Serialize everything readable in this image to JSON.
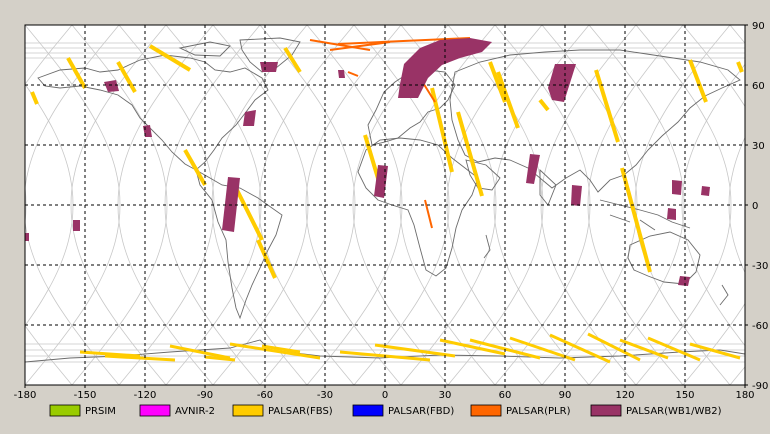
{
  "map": {
    "lon_ticks": [
      "-180",
      "-150",
      "-120",
      "-90",
      "-60",
      "-30",
      "0",
      "30",
      "60",
      "90",
      "120",
      "150",
      "180"
    ],
    "lat_ticks": [
      "90",
      "60",
      "30",
      "0",
      "-30",
      "-60",
      "-90"
    ]
  },
  "legend": [
    {
      "label": "PRSIM",
      "color": "#99cc00"
    },
    {
      "label": "AVNIR-2",
      "color": "#ff00ff"
    },
    {
      "label": "PALSAR(FBS)",
      "color": "#ffcc00"
    },
    {
      "label": "PALSAR(FBD)",
      "color": "#0000ff"
    },
    {
      "label": "PALSAR(PLR)",
      "color": "#ff6600"
    },
    {
      "label": "PALSAR(WB1/WB2)",
      "color": "#993366"
    }
  ]
}
